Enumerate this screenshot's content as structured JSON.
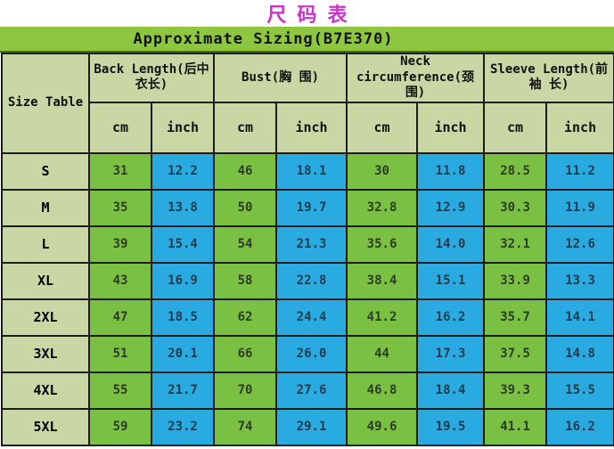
{
  "title": "尺码表",
  "chart_data": {
    "type": "table",
    "title": "Approximate Sizing(B7E370)",
    "corner_label": "Size Table",
    "column_groups": [
      "Back Length(后中衣长)",
      "Bust(胸 围)",
      "Neck circumference(颈围)",
      "Sleeve Length(前袖 长)"
    ],
    "unit_cells": [
      "cm",
      "inch",
      "cm",
      "inch",
      "cm",
      "inch",
      "cm",
      "inch"
    ],
    "rows": [
      {
        "size": "S",
        "values": [
          "31",
          "12.2",
          "46",
          "18.1",
          "30",
          "11.8",
          "28.5",
          "11.2"
        ]
      },
      {
        "size": "M",
        "values": [
          "35",
          "13.8",
          "50",
          "19.7",
          "32.8",
          "12.9",
          "30.3",
          "11.9"
        ]
      },
      {
        "size": "L",
        "values": [
          "39",
          "15.4",
          "54",
          "21.3",
          "35.6",
          "14.0",
          "32.1",
          "12.6"
        ]
      },
      {
        "size": "XL",
        "values": [
          "43",
          "16.9",
          "58",
          "22.8",
          "38.4",
          "15.1",
          "33.9",
          "13.3"
        ]
      },
      {
        "size": "2XL",
        "values": [
          "47",
          "18.5",
          "62",
          "24.4",
          "41.2",
          "16.2",
          "35.7",
          "14.1"
        ]
      },
      {
        "size": "3XL",
        "values": [
          "51",
          "20.1",
          "66",
          "26.0",
          "44",
          "17.3",
          "37.5",
          "14.8"
        ]
      },
      {
        "size": "4XL",
        "values": [
          "55",
          "21.7",
          "70",
          "27.6",
          "46.8",
          "18.4",
          "39.3",
          "15.5"
        ]
      },
      {
        "size": "5XL",
        "values": [
          "59",
          "23.2",
          "74",
          "29.1",
          "49.6",
          "19.5",
          "41.1",
          "16.2"
        ]
      }
    ]
  },
  "colors": {
    "title_text": "#cc33cc",
    "header_green": "#8dc63f",
    "sage": "#c9d7a4",
    "cell_green": "#7ac143",
    "cell_blue": "#29abe2",
    "divider_dark_green": "#4e682a",
    "border": "#1c1c1c"
  }
}
